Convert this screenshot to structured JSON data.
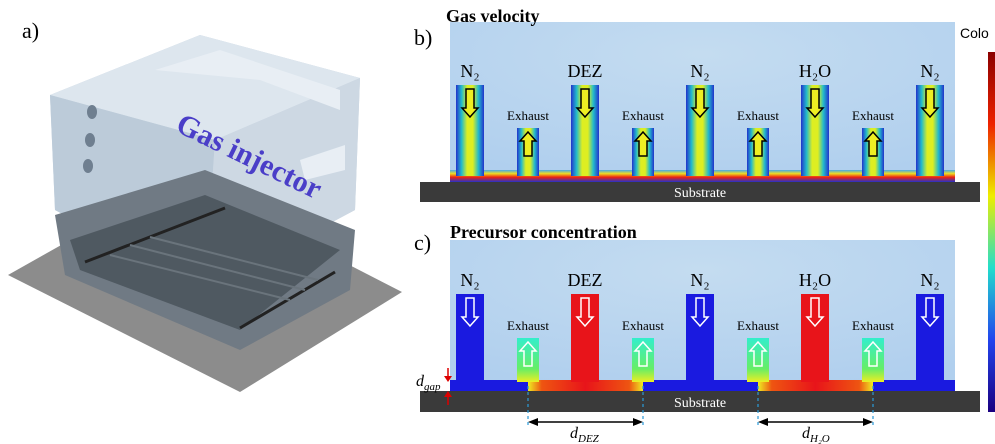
{
  "panel_a": {
    "label": "a)",
    "text": "Gas injector"
  },
  "panel_b": {
    "label": "b)",
    "title": "Gas velocity",
    "colorbar_label": "Colo",
    "inlets": [
      "N₂",
      "DEZ",
      "N₂",
      "H₂O",
      "N₂"
    ],
    "exhaust": [
      "Exhaust",
      "Exhaust",
      "Exhaust",
      "Exhaust"
    ],
    "substrate": "Substrate"
  },
  "panel_c": {
    "label": "c)",
    "title": "Precursor concentration",
    "inlets": [
      "N₂",
      "DEZ",
      "N₂",
      "H₂O",
      "N₂"
    ],
    "exhaust": [
      "Exhaust",
      "Exhaust",
      "Exhaust",
      "Exhaust"
    ],
    "substrate": "Substrate",
    "d_gap": {
      "main": "d",
      "sub": "gap"
    },
    "d_dez": {
      "main": "d",
      "sub": "DEZ"
    },
    "d_h2o": {
      "main": "d",
      "sub": "H₂O"
    }
  }
}
